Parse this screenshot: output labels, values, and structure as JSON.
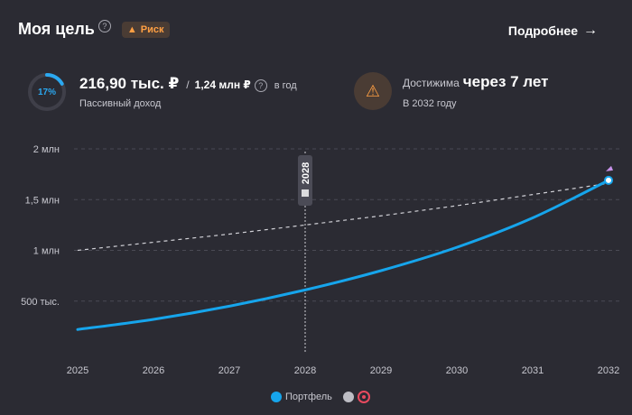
{
  "header": {
    "title": "Моя цель",
    "help_icon": "question-icon",
    "badge_label": "Риск",
    "badge_icon": "warning-icon",
    "more_label": "Подробнее",
    "more_icon": "arrow-right-icon"
  },
  "income": {
    "progress_pct_label": "17%",
    "progress_fraction": 0.17,
    "amount": "216,90 тыс. ₽",
    "separator": "/",
    "total": "1,24 млн ₽",
    "period": "в год",
    "caption": "Пассивный доход"
  },
  "reach": {
    "icon": "warning-icon",
    "label": "Достижима",
    "value": "через 7 лет",
    "caption": "В 2032 году"
  },
  "colors": {
    "background": "#2b2b33",
    "portfolio": "#16a5ec",
    "target": "#d0d0d6",
    "warning": "#ff9f43"
  },
  "legend": {
    "items": [
      {
        "label": "Портфель",
        "color": "#16a5ec",
        "icon": ""
      },
      {
        "label": "",
        "color": "#bdbdc4",
        "icon": "target-icon"
      }
    ]
  },
  "chart_data": {
    "type": "line",
    "x": [
      2025,
      2026,
      2027,
      2028,
      2029,
      2030,
      2031,
      2032
    ],
    "x_ticks": [
      "2025",
      "2026",
      "2027",
      "2028",
      "2029",
      "2030",
      "2031",
      "2032"
    ],
    "y_ticks": [
      "500 тыс.",
      "1 млн",
      "1,5 млн",
      "2 млн"
    ],
    "y_tick_values": [
      500000,
      1000000,
      1500000,
      2000000
    ],
    "ylim": [
      0,
      2000000
    ],
    "grid": true,
    "marker_label": "2028",
    "marker_x": 2028,
    "series": [
      {
        "name": "Портфель",
        "values": [
          220000,
          320000,
          450000,
          610000,
          800000,
          1030000,
          1320000,
          1690000
        ]
      },
      {
        "name": "",
        "values": [
          1000000,
          1080000,
          1160000,
          1250000,
          1340000,
          1440000,
          1550000,
          1660000
        ]
      }
    ]
  }
}
